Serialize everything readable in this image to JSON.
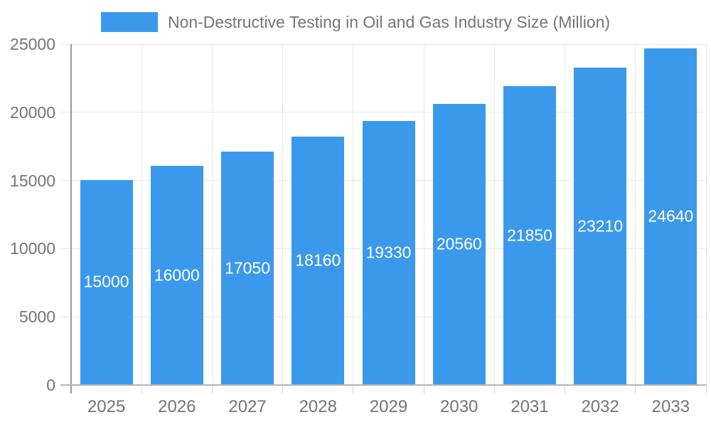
{
  "chart_data": {
    "type": "bar",
    "title": "Non-Destructive Testing in Oil and Gas Industry Size (Million)",
    "categories": [
      "2025",
      "2026",
      "2027",
      "2028",
      "2029",
      "2030",
      "2031",
      "2032",
      "2033"
    ],
    "values": [
      15000,
      16000,
      17050,
      18160,
      19330,
      20560,
      21850,
      23210,
      24640
    ],
    "xlabel": "",
    "ylabel": "",
    "ylim": [
      0,
      25000
    ],
    "ytick_step": 5000,
    "ytick_labels": [
      "0",
      "5000",
      "10000",
      "15000",
      "20000",
      "25000"
    ],
    "grid": "on",
    "legend_position": "top-center",
    "value_labels": "inside-center-white"
  },
  "colors": {
    "bar": "#3B99EC",
    "bar_label": "#FFFFFF",
    "grid": "#E8E8E8",
    "axis_y": "#999999",
    "axis_x": "#B5B5B5",
    "tick_x": "#D4D4D4",
    "tick_y": "#E8E8E8",
    "text": "#757575",
    "background": "#FFFFFF"
  }
}
